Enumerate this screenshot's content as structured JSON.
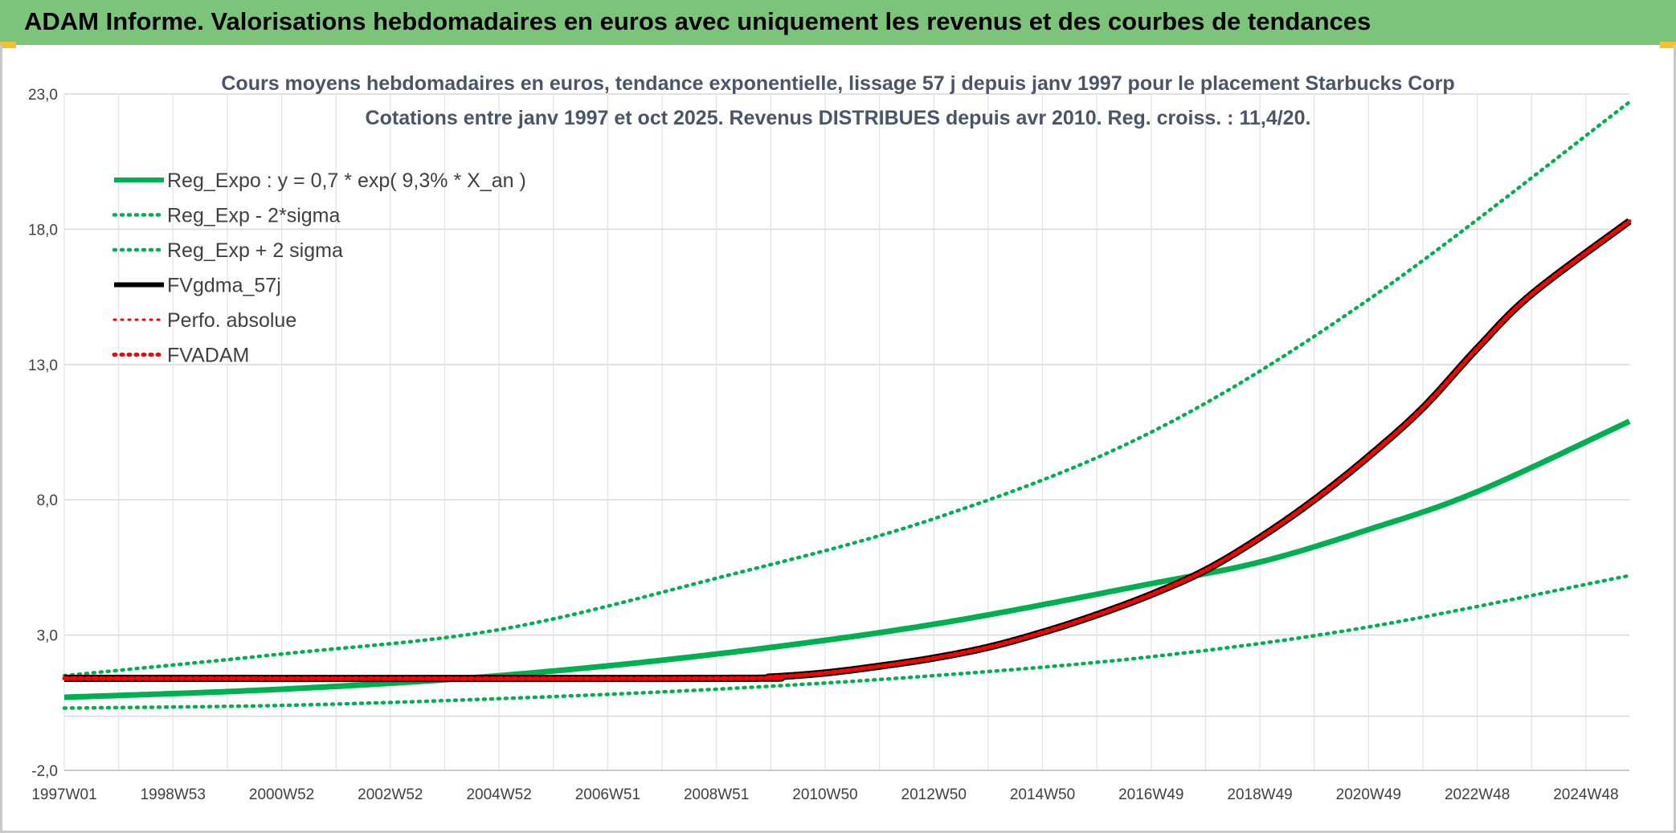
{
  "header": {
    "title": "ADAM Informe. Valorisations hebdomadaires en euros avec uniquement les revenus et des courbes de tendances"
  },
  "colors": {
    "header_bg": "#7cc47a",
    "green": "#00b050",
    "red": "#ff0000",
    "black": "#000000",
    "accent_corner": "#f1c232"
  },
  "chart_data": {
    "type": "line",
    "title": "Cours moyens hebdomadaires en euros, tendance exponentielle, lissage 57 j depuis janv 1997 pour le placement Starbucks Corp",
    "subtitle": "Cotations entre janv 1997 et oct 2025. Revenus DISTRIBUES depuis avr 2010. Reg. croiss. : 11,4/20.",
    "xlabel": "",
    "ylabel": "",
    "ylim": [
      -2,
      23
    ],
    "yticks": [
      "23,0",
      "18,0",
      "13,0",
      "8,0",
      "3,0",
      "-2,0"
    ],
    "ytick_values": [
      23,
      18,
      13,
      8,
      3,
      -2
    ],
    "xlim": [
      1997.0,
      2025.8
    ],
    "xtick_labels": [
      "1997W01",
      "1998W53",
      "2000W52",
      "2002W52",
      "2004W52",
      "2006W51",
      "2008W51",
      "2010W50",
      "2012W50",
      "2014W50",
      "2016W49",
      "2018W49",
      "2020W49",
      "2022W48",
      "2024W48"
    ],
    "xtick_values": [
      1997.0,
      1999.0,
      2001.0,
      2003.0,
      2005.0,
      2007.0,
      2009.0,
      2011.0,
      2013.0,
      2015.0,
      2017.0,
      2019.0,
      2021.0,
      2023.0,
      2025.0
    ],
    "grid": true,
    "legend_position": "top-left",
    "series": [
      {
        "name": "Reg_Expo : y = 0,7 * exp( 9,3% *  X_an )",
        "style": "solid",
        "color": "#00b050",
        "x": [
          1997.0,
          2001.0,
          2005.0,
          2009.0,
          2013.0,
          2017.0,
          2019.0,
          2021.0,
          2023.0,
          2025.8
        ],
        "y": [
          0.7,
          1.0,
          1.5,
          2.3,
          3.4,
          4.9,
          5.7,
          6.9,
          8.3,
          10.9
        ]
      },
      {
        "name": "Reg_Exp - 2*sigma",
        "style": "dotted",
        "color": "#00b050",
        "x": [
          1997.0,
          2001.0,
          2005.0,
          2009.0,
          2013.0,
          2017.0,
          2021.0,
          2025.8
        ],
        "y": [
          0.3,
          0.4,
          0.65,
          1.0,
          1.5,
          2.2,
          3.3,
          5.2
        ]
      },
      {
        "name": "Reg_Exp + 2 sigma",
        "style": "dotted",
        "color": "#00b050",
        "x": [
          1997.0,
          2001.0,
          2005.0,
          2009.0,
          2013.0,
          2017.0,
          2021.0,
          2025.8
        ],
        "y": [
          1.5,
          2.3,
          3.2,
          5.1,
          7.3,
          10.5,
          15.4,
          22.7
        ]
      },
      {
        "name": "FVgdma_57j",
        "style": "solid",
        "color": "#000000",
        "x": [
          1997.0,
          2009.0,
          2010.0,
          2011.0,
          2012.0,
          2013.0,
          2014.0,
          2015.0,
          2016.0,
          2017.0,
          2018.0,
          2019.0,
          2020.0,
          2021.0,
          2022.0,
          2023.0,
          2024.0,
          2025.8
        ],
        "y": [
          1.4,
          1.4,
          1.45,
          1.6,
          1.85,
          2.15,
          2.55,
          3.1,
          3.75,
          4.5,
          5.4,
          6.6,
          8.0,
          9.6,
          11.4,
          13.6,
          15.6,
          18.3
        ]
      },
      {
        "name": "Perfo. absolue",
        "style": "dotted",
        "color": "#ff0000",
        "x": [
          1997.0,
          2009.0,
          2010.0,
          2011.0,
          2012.0,
          2013.0,
          2014.0,
          2015.0,
          2016.0,
          2017.0,
          2018.0,
          2019.0,
          2020.0,
          2021.0,
          2022.0,
          2023.0,
          2024.0,
          2025.8
        ],
        "y": [
          1.4,
          1.4,
          1.45,
          1.6,
          1.85,
          2.15,
          2.55,
          3.1,
          3.75,
          4.5,
          5.4,
          6.6,
          8.0,
          9.6,
          11.4,
          13.6,
          15.6,
          18.3
        ]
      },
      {
        "name": "FVADAM",
        "style": "solid",
        "color": "#ff0000",
        "x": [
          1997.0,
          2009.0,
          2010.0,
          2011.0,
          2012.0,
          2013.0,
          2014.0,
          2015.0,
          2016.0,
          2017.0,
          2018.0,
          2019.0,
          2020.0,
          2021.0,
          2022.0,
          2023.0,
          2024.0,
          2025.8
        ],
        "y": [
          1.4,
          1.4,
          1.45,
          1.6,
          1.85,
          2.15,
          2.55,
          3.1,
          3.75,
          4.5,
          5.4,
          6.6,
          8.0,
          9.6,
          11.4,
          13.6,
          15.6,
          18.3
        ]
      }
    ]
  }
}
